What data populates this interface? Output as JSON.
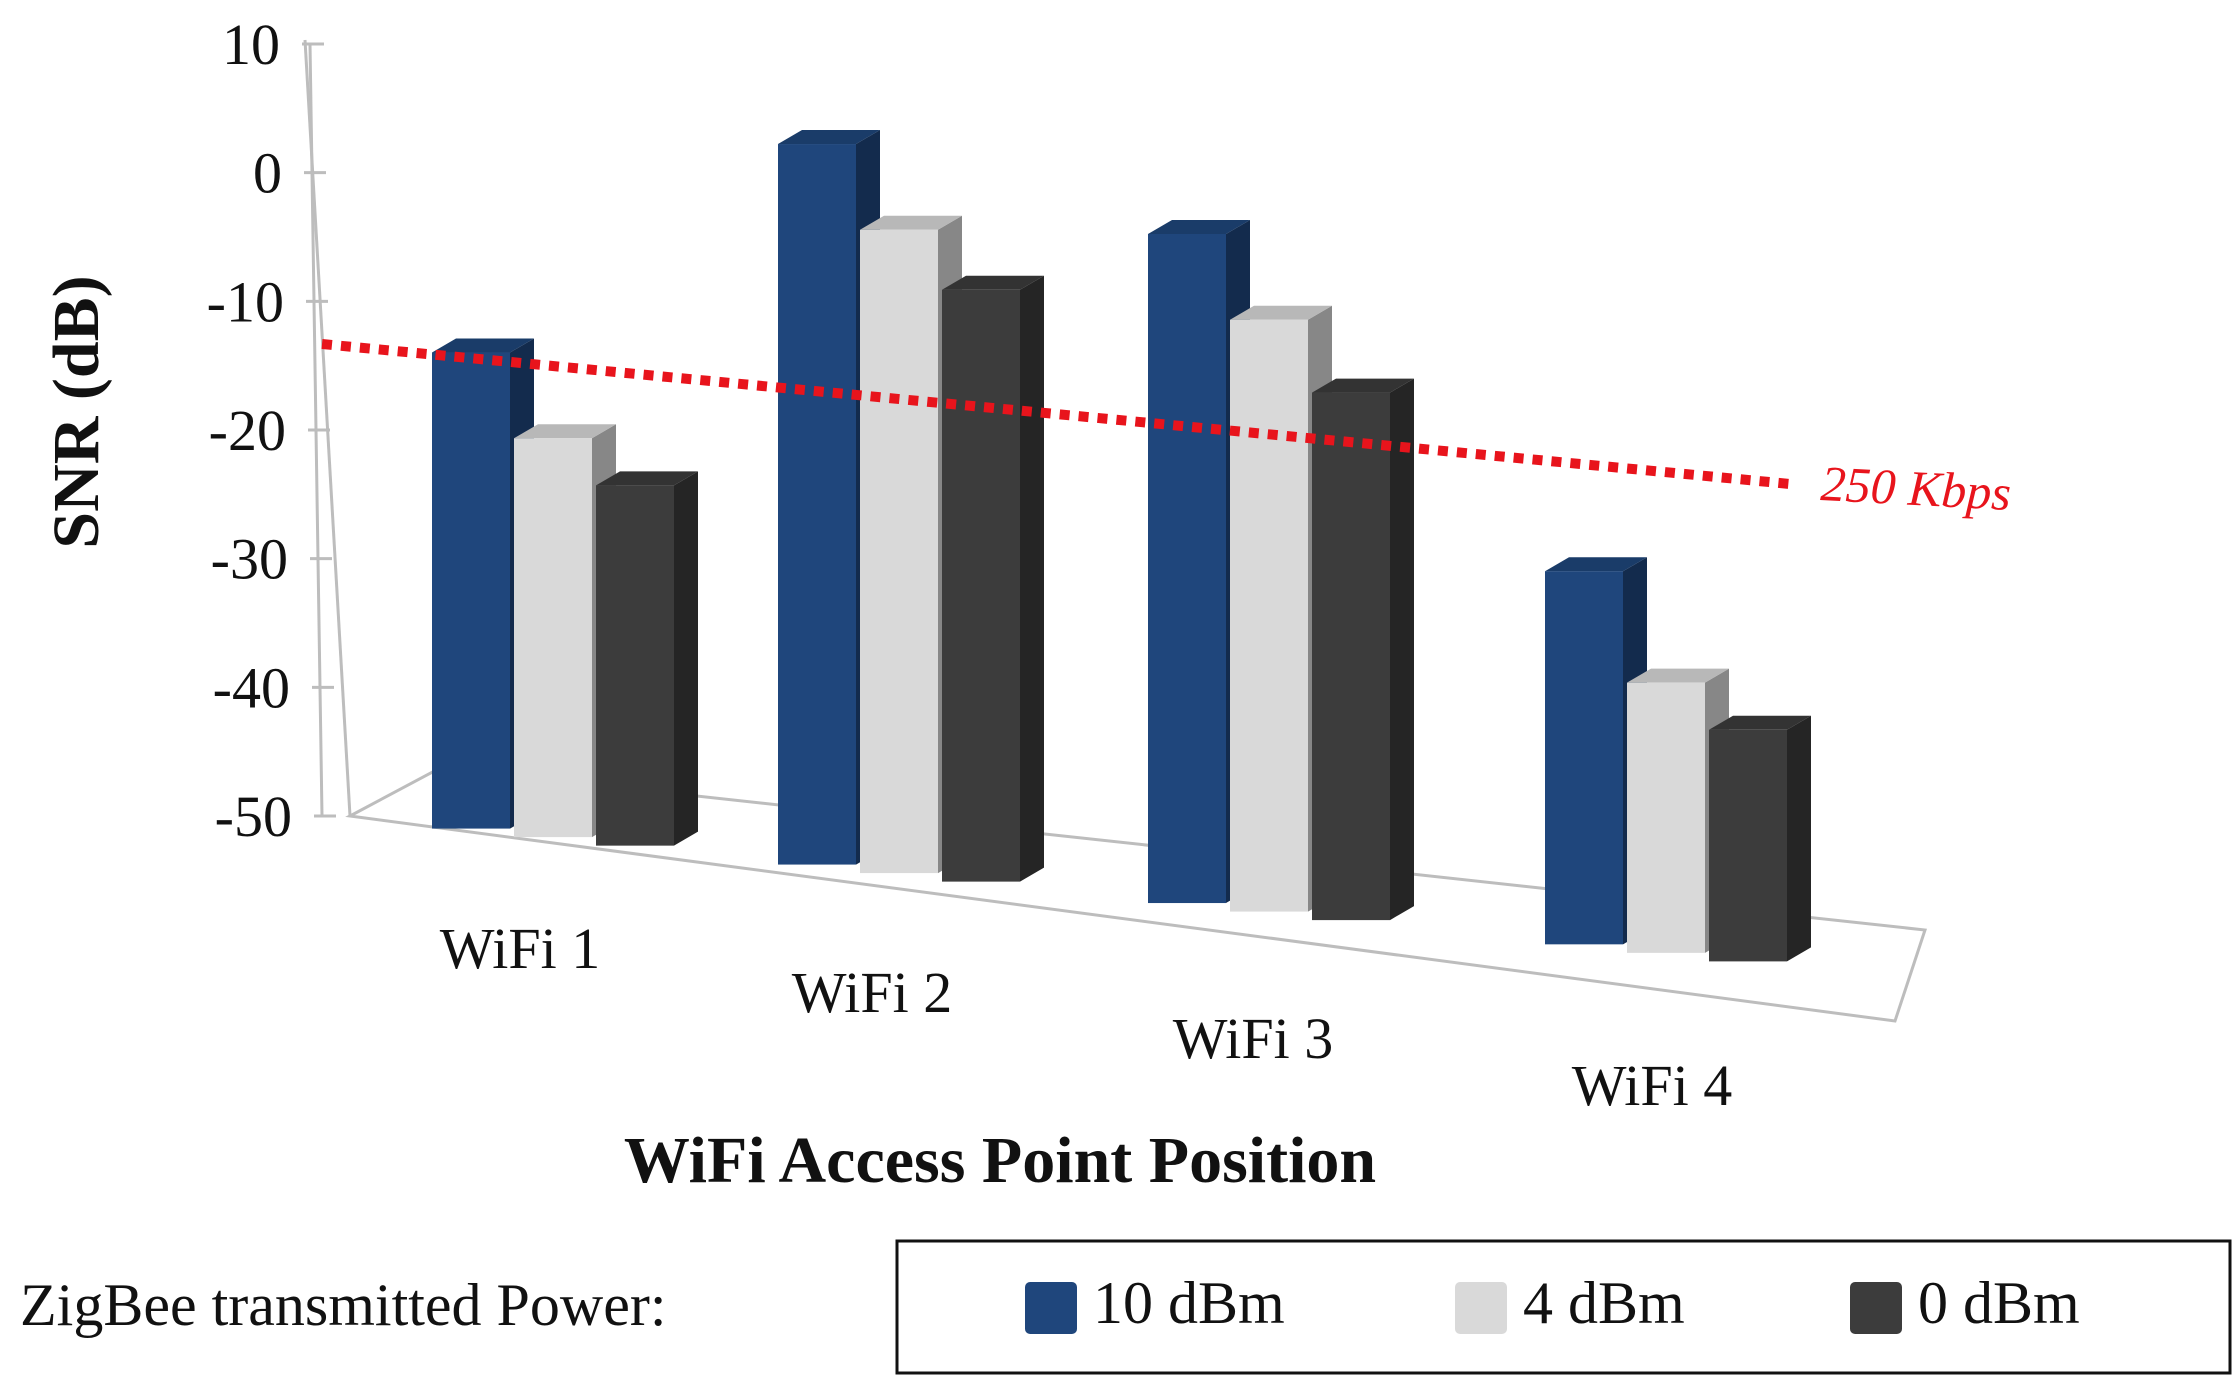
{
  "chart_data": {
    "type": "bar",
    "style": "3d-clustered-column",
    "categories": [
      "WiFi 1",
      "WiFi 2",
      "WiFi 3",
      "WiFi 4"
    ],
    "series": [
      {
        "name": "10 dBm",
        "color": "#1f467c",
        "values": [
          -13,
          6,
          2,
          -21
        ]
      },
      {
        "name": "4 dBm",
        "color": "#d9d9d9",
        "values": [
          -19,
          0,
          -4,
          -29
        ]
      },
      {
        "name": "0 dBm",
        "color": "#3c3c3c",
        "values": [
          -22,
          -4,
          -9,
          -32
        ]
      }
    ],
    "ylim": [
      -50,
      10
    ],
    "yticks": [
      "10",
      "0",
      "-10",
      "-20",
      "-30",
      "-40",
      "-50"
    ],
    "xlabel": "WiFi Access Point Position",
    "ylabel": "SNR (dB)",
    "reference_line": {
      "label": "250 Kbps",
      "style": "dotted",
      "color": "#e8141c"
    },
    "legend": {
      "title": "ZigBee transmitted Power:",
      "position": "bottom"
    }
  }
}
